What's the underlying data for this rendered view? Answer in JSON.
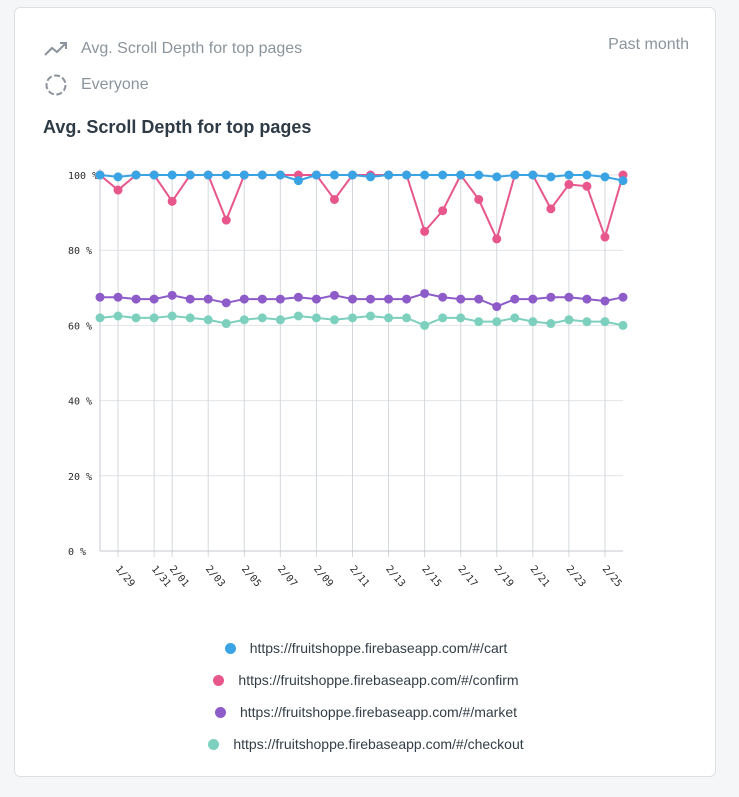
{
  "header": {
    "metric_label": "Avg. Scroll Depth for top pages",
    "segment_label": "Everyone",
    "period_label": "Past month",
    "metric_icon": "trend-line-icon",
    "segment_icon": "spinner-circle-icon"
  },
  "chart_data": {
    "type": "line",
    "title": "Avg. Scroll Depth for top pages",
    "xlabel": "",
    "ylabel": "",
    "ylim": [
      0,
      100
    ],
    "yticks": [
      0,
      20,
      40,
      60,
      80,
      100
    ],
    "ytick_labels": [
      "0 %",
      "20 %",
      "40 %",
      "60 %",
      "80 %",
      "100 %"
    ],
    "x": [
      "1/28",
      "1/29",
      "1/30",
      "1/31",
      "2/01",
      "2/02",
      "2/03",
      "2/04",
      "2/05",
      "2/06",
      "2/07",
      "2/08",
      "2/09",
      "2/10",
      "2/11",
      "2/12",
      "2/13",
      "2/14",
      "2/15",
      "2/16",
      "2/17",
      "2/18",
      "2/19",
      "2/20",
      "2/21",
      "2/22",
      "2/23",
      "2/24",
      "2/25",
      "2/26"
    ],
    "xtick_labels": [
      "1/29",
      "1/31",
      "2/01",
      "2/03",
      "2/05",
      "2/07",
      "2/09",
      "2/11",
      "2/13",
      "2/15",
      "2/17",
      "2/19",
      "2/21",
      "2/23",
      "2/25"
    ],
    "xtick_dates": [
      "1/29",
      "1/31",
      "2/01",
      "2/03",
      "2/05",
      "2/07",
      "2/09",
      "2/11",
      "2/13",
      "2/15",
      "2/17",
      "2/19",
      "2/21",
      "2/23",
      "2/25"
    ],
    "grid": true,
    "legend_position": "bottom",
    "series": [
      {
        "name": "https://fruitshoppe.firebaseapp.com/#/cart",
        "color": "#3aa3e3",
        "values": [
          100,
          99.5,
          100,
          100,
          100,
          100,
          100,
          100,
          100,
          100,
          100,
          98.5,
          100,
          100,
          100,
          99.5,
          100,
          100,
          100,
          100,
          100,
          100,
          99.5,
          100,
          100,
          99.5,
          100,
          100,
          99.5,
          98.5
        ]
      },
      {
        "name": "https://fruitshoppe.firebaseapp.com/#/confirm",
        "color": "#e8578b",
        "values": [
          100,
          96,
          100,
          100,
          93,
          100,
          100,
          88,
          100,
          100,
          100,
          100,
          100,
          93.5,
          100,
          100,
          100,
          100,
          85,
          90.5,
          100,
          93.5,
          83,
          100,
          100,
          91,
          97.5,
          97,
          83.5,
          100
        ]
      },
      {
        "name": "https://fruitshoppe.firebaseapp.com/#/market",
        "color": "#8d5cc9",
        "values": [
          67.5,
          67.5,
          67,
          67,
          68,
          67,
          67,
          66,
          67,
          67,
          67,
          67.5,
          67,
          68,
          67,
          67,
          67,
          67,
          68.5,
          67.5,
          67,
          67,
          65,
          67,
          67,
          67.5,
          67.5,
          67,
          66.5,
          67.5
        ]
      },
      {
        "name": "https://fruitshoppe.firebaseapp.com/#/checkout",
        "color": "#7dd0bd",
        "values": [
          62,
          62.5,
          62,
          62,
          62.5,
          62,
          61.5,
          60.5,
          61.5,
          62,
          61.5,
          62.5,
          62,
          61.5,
          62,
          62.5,
          62,
          62,
          60,
          62,
          62,
          61,
          61,
          62,
          61,
          60.5,
          61.5,
          61,
          61,
          60
        ]
      }
    ]
  }
}
